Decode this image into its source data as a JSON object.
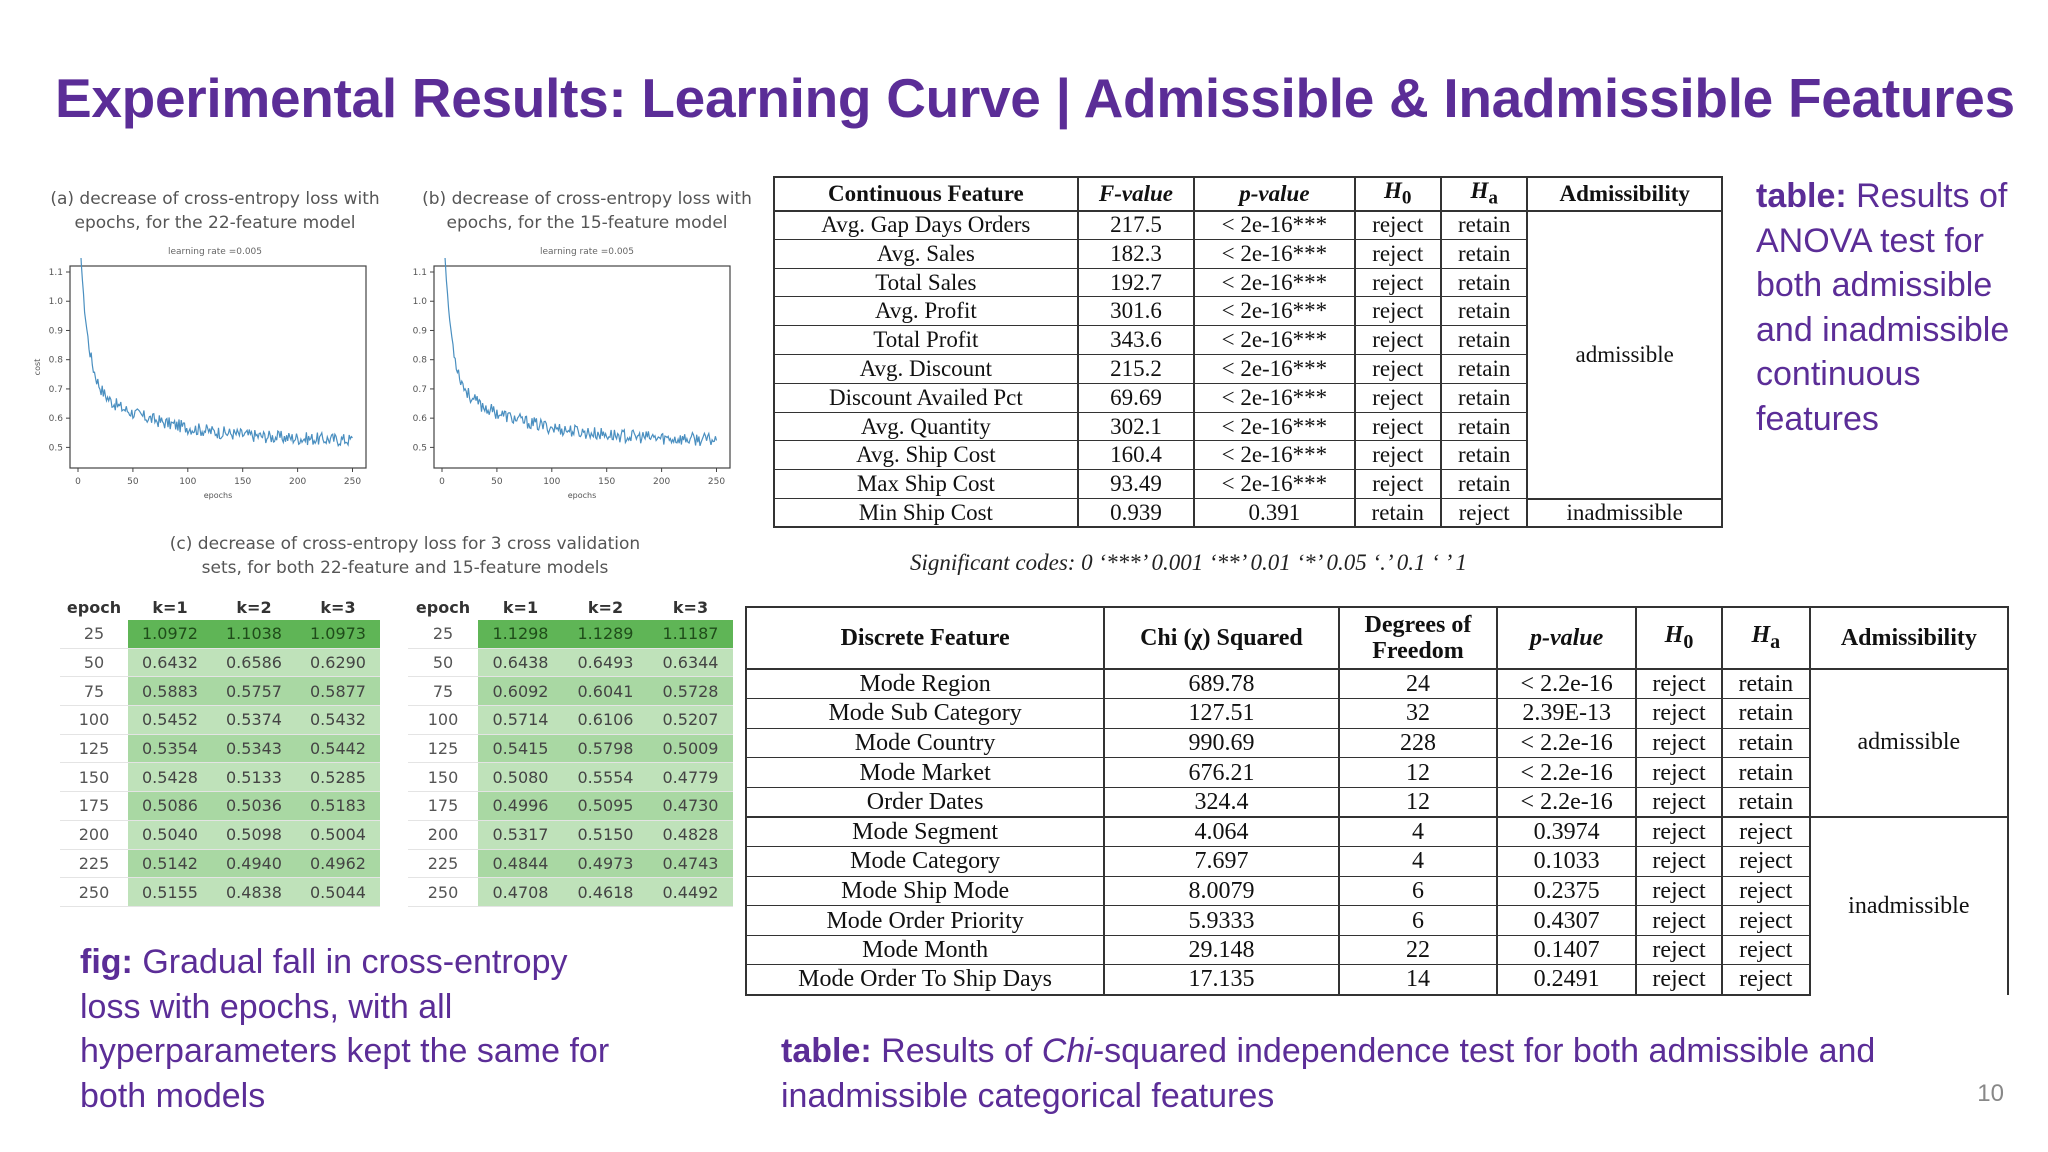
{
  "slide": {
    "title": "Experimental Results: Learning Curve | Admissible & Inadmissible Features",
    "page_number": "10"
  },
  "plots": [
    {
      "title_line1": "(a) decrease of cross-entropy loss with",
      "title_line2": "epochs, for the 22-feature model",
      "subtitle": "learning rate =0.005",
      "ylabel": "cost",
      "xlabel": "epochs",
      "x_ticks": [
        "0",
        "50",
        "100",
        "150",
        "200",
        "250"
      ],
      "y_ticks": [
        "1.1",
        "1.0",
        "0.9",
        "0.8",
        "0.7",
        "0.6",
        "0.5"
      ]
    },
    {
      "title_line1": "(b) decrease of cross-entropy loss with",
      "title_line2": "epochs, for the 15-feature model",
      "subtitle": "learning rate =0.005",
      "xlabel": "epochs",
      "x_ticks": [
        "0",
        "50",
        "100",
        "150",
        "200",
        "250"
      ],
      "y_ticks": [
        "1.1",
        "1.0",
        "0.9",
        "0.8",
        "0.7",
        "0.6",
        "0.5"
      ]
    }
  ],
  "plot_c": {
    "line1": "(c) decrease of cross-entropy loss for 3 cross validation",
    "line2": "sets, for both 22-feature and 15-feature models"
  },
  "epoch_tables": [
    {
      "headers": [
        "epoch",
        "k=1",
        "k=2",
        "k=3"
      ],
      "rows": [
        [
          "25",
          "1.0972",
          "1.1038",
          "1.0973"
        ],
        [
          "50",
          "0.6432",
          "0.6586",
          "0.6290"
        ],
        [
          "75",
          "0.5883",
          "0.5757",
          "0.5877"
        ],
        [
          "100",
          "0.5452",
          "0.5374",
          "0.5432"
        ],
        [
          "125",
          "0.5354",
          "0.5343",
          "0.5442"
        ],
        [
          "150",
          "0.5428",
          "0.5133",
          "0.5285"
        ],
        [
          "175",
          "0.5086",
          "0.5036",
          "0.5183"
        ],
        [
          "200",
          "0.5040",
          "0.5098",
          "0.5004"
        ],
        [
          "225",
          "0.5142",
          "0.4940",
          "0.4962"
        ],
        [
          "250",
          "0.5155",
          "0.4838",
          "0.5044"
        ]
      ]
    },
    {
      "headers": [
        "epoch",
        "k=1",
        "k=2",
        "k=3"
      ],
      "rows": [
        [
          "25",
          "1.1298",
          "1.1289",
          "1.1187"
        ],
        [
          "50",
          "0.6438",
          "0.6493",
          "0.6344"
        ],
        [
          "75",
          "0.6092",
          "0.6041",
          "0.5728"
        ],
        [
          "100",
          "0.5714",
          "0.6106",
          "0.5207"
        ],
        [
          "125",
          "0.5415",
          "0.5798",
          "0.5009"
        ],
        [
          "150",
          "0.5080",
          "0.5554",
          "0.4779"
        ],
        [
          "175",
          "0.4996",
          "0.5095",
          "0.4730"
        ],
        [
          "200",
          "0.5317",
          "0.5150",
          "0.4828"
        ],
        [
          "225",
          "0.4844",
          "0.4973",
          "0.4743"
        ],
        [
          "250",
          "0.4708",
          "0.4618",
          "0.4492"
        ]
      ]
    }
  ],
  "anova_table": {
    "headers": [
      "Continuous Feature",
      "F-value",
      "p-value",
      "H",
      "H",
      "Admissibility"
    ],
    "h0_sub": "0",
    "ha_sub": "a",
    "rows": [
      [
        "Avg. Gap Days Orders",
        "217.5",
        "< 2e-16***",
        "reject",
        "retain"
      ],
      [
        "Avg. Sales",
        "182.3",
        "< 2e-16***",
        "reject",
        "retain"
      ],
      [
        "Total Sales",
        "192.7",
        "< 2e-16***",
        "reject",
        "retain"
      ],
      [
        "Avg. Profit",
        "301.6",
        "< 2e-16***",
        "reject",
        "retain"
      ],
      [
        "Total Profit",
        "343.6",
        "< 2e-16***",
        "reject",
        "retain"
      ],
      [
        "Avg. Discount",
        "215.2",
        "< 2e-16***",
        "reject",
        "retain"
      ],
      [
        "Discount Availed Pct",
        "69.69",
        "< 2e-16***",
        "reject",
        "retain"
      ],
      [
        "Avg. Quantity",
        "302.1",
        "< 2e-16***",
        "reject",
        "retain"
      ],
      [
        "Avg. Ship Cost",
        "160.4",
        "< 2e-16***",
        "reject",
        "retain"
      ],
      [
        "Max Ship Cost",
        "93.49",
        "< 2e-16***",
        "reject",
        "retain"
      ],
      [
        "Min Ship Cost",
        "0.939",
        "0.391",
        "retain",
        "reject"
      ]
    ],
    "admissible_label": "admissible",
    "inadmissible_label": "inadmissible"
  },
  "significance_codes": "Significant codes: 0 ‘***’ 0.001 ‘**’ 0.01 ‘*’ 0.05 ‘.’ 0.1 ‘ ’ 1",
  "chi_table": {
    "headers": [
      "Discrete Feature",
      "Chi (χ) Squared",
      "Degrees of",
      "Freedom",
      "p-value",
      "H",
      "H",
      "Admissibility"
    ],
    "h0_sub": "0",
    "ha_sub": "a",
    "rows": [
      [
        "Mode Region",
        "689.78",
        "24",
        "< 2.2e-16",
        "reject",
        "retain"
      ],
      [
        "Mode Sub Category",
        "127.51",
        "32",
        "2.39E-13",
        "reject",
        "retain"
      ],
      [
        "Mode Country",
        "990.69",
        "228",
        "< 2.2e-16",
        "reject",
        "retain"
      ],
      [
        "Mode Market",
        "676.21",
        "12",
        "< 2.2e-16",
        "reject",
        "retain"
      ],
      [
        "Order Dates",
        "324.4",
        "12",
        "< 2.2e-16",
        "reject",
        "retain"
      ],
      [
        "Mode Segment",
        "4.064",
        "4",
        "0.3974",
        "reject",
        "reject"
      ],
      [
        "Mode Category",
        "7.697",
        "4",
        "0.1033",
        "reject",
        "reject"
      ],
      [
        "Mode Ship Mode",
        "8.0079",
        "6",
        "0.2375",
        "reject",
        "reject"
      ],
      [
        "Mode Order Priority",
        "5.9333",
        "6",
        "0.4307",
        "reject",
        "reject"
      ],
      [
        "Mode Month",
        "29.148",
        "22",
        "0.1407",
        "reject",
        "reject"
      ],
      [
        "Mode Order To Ship Days",
        "17.135",
        "14",
        "0.2491",
        "reject",
        "reject"
      ]
    ],
    "admissible_label": "admissible",
    "inadmissible_label": "inadmissible"
  },
  "captions": {
    "anova": {
      "lead": "table:",
      "text": "Results of ANOVA test for both admissible and inadmissible continuous features"
    },
    "fig": {
      "lead": "fig:",
      "text": "Gradual fall in cross-entropy loss with epochs, with all hyperparameters kept the same for both models"
    },
    "chi": {
      "lead": "table:",
      "text_before": "Results of",
      "italic": "Chi",
      "text_after": "-squared independence test for both admissible and inadmissible categorical features"
    }
  },
  "colors": {
    "accent": "#5b2d97",
    "curve": "#4a8fc0",
    "green_dark": "#5fb556",
    "green_light": "#bfe2ba"
  }
}
